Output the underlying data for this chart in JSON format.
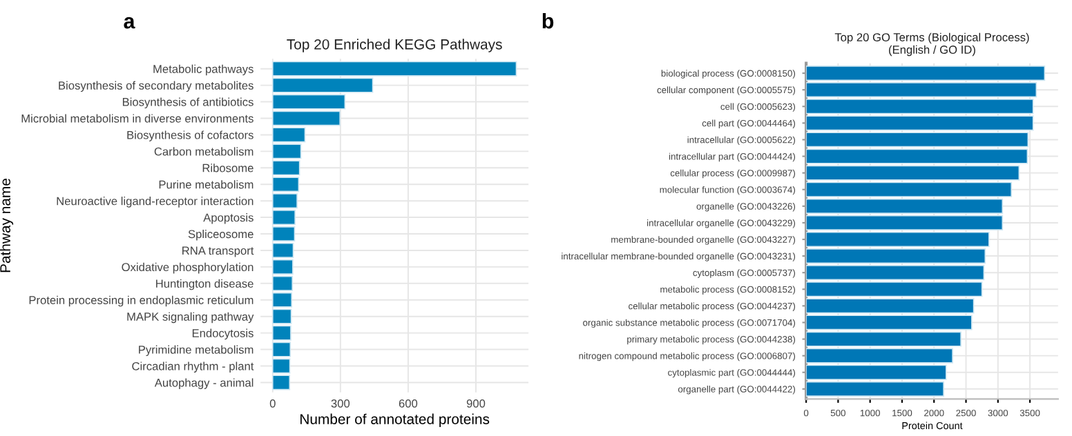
{
  "chart_data": [
    {
      "type": "bar",
      "orientation": "horizontal",
      "title": "Top 20 Enriched KEGG Pathways",
      "xlabel": "Number of annotated proteins",
      "ylabel": "Pathway name",
      "annotations": [
        "a"
      ],
      "categories": [
        "Metabolic pathways",
        "Biosynthesis of secondary metabolites",
        "Biosynthesis of antibiotics",
        "Microbial metabolism in diverse environments",
        "Biosynthesis of cofactors",
        "Carbon metabolism",
        "Ribosome",
        "Purine metabolism",
        "Neuroactive ligand-receptor interaction",
        "Apoptosis",
        "Spliceosome",
        "RNA transport",
        "Oxidative phosphorylation",
        "Huntington disease",
        "Protein processing in endoplasmic reticulum",
        "MAPK signaling pathway",
        "Endocytosis",
        "Pyrimidine metabolism",
        "Circadian rhythm - plant",
        "Autophagy - animal"
      ],
      "values": [
        1079,
        443,
        320,
        298,
        143,
        125,
        119,
        115,
        108,
        99,
        97,
        91,
        89,
        87,
        84,
        82,
        80,
        78,
        76,
        75
      ],
      "color": "#0083bb",
      "xlim": [
        -54,
        1133
      ],
      "xticks": [
        0,
        300,
        600,
        900
      ],
      "grid": true
    },
    {
      "type": "bar",
      "orientation": "horizontal",
      "title": "Top 20 GO Terms (Biological Process)\n(English / GO ID)",
      "xlabel": "Protein Count",
      "annotations": [
        "b"
      ],
      "categories": [
        "biological process (GO:0008150)",
        "cellular component (GO:0005575)",
        "cell (GO:0005623)",
        "cell part (GO:0044464)",
        "intracellular (GO:0005622)",
        "intracellular part (GO:0044424)",
        "cellular process (GO:0009987)",
        "molecular function (GO:0003674)",
        "organelle (GO:0043226)",
        "intracellular organelle (GO:0043229)",
        "membrane-bounded organelle (GO:0043227)",
        "intracellular membrane-bounded organelle (GO:0043231)",
        "cytoplasm (GO:0005737)",
        "metabolic process (GO:0008152)",
        "cellular metabolic process (GO:0044237)",
        "organic substance metabolic process (GO:0071704)",
        "primary metabolic process (GO:0044238)",
        "nitrogen compound metabolic process (GO:0006807)",
        "cytoplasmic part (GO:0044444)",
        "organelle part (GO:0044422)"
      ],
      "values": [
        3730,
        3600,
        3550,
        3550,
        3470,
        3460,
        3330,
        3210,
        3070,
        3070,
        2860,
        2800,
        2780,
        2750,
        2620,
        2590,
        2420,
        2290,
        2190,
        2150
      ],
      "color": "#0077b6",
      "xlim": [
        0,
        3940
      ],
      "xticks": [
        0,
        500,
        1000,
        1500,
        2000,
        2500,
        3000,
        3500
      ],
      "grid": true
    }
  ]
}
